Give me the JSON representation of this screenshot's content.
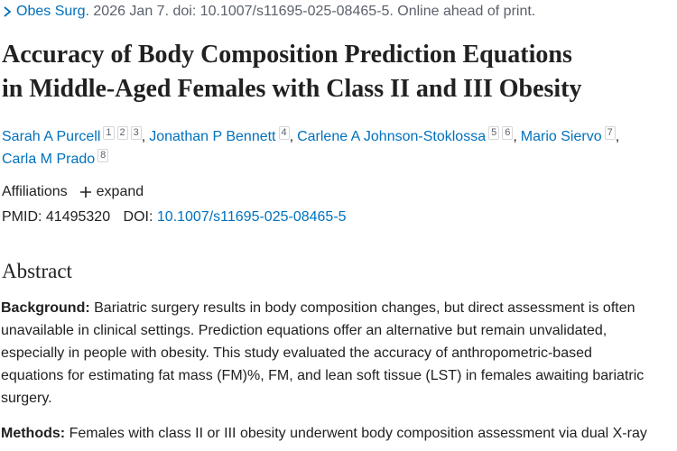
{
  "citation": {
    "journal": "Obes Surg.",
    "details": "2026 Jan 7. doi: 10.1007/s11695-025-08465-5. Online ahead of print."
  },
  "title_lines": [
    "Accuracy of Body Composition Prediction Equations",
    "in Middle-Aged Females with Class II and III Obesity"
  ],
  "author_separator": ",",
  "author_lines": [
    [
      {
        "name": "Sarah A Purcell",
        "affiliations": [
          "1",
          "2",
          "3"
        ]
      },
      {
        "name": "Jonathan P Bennett",
        "affiliations": [
          "4"
        ]
      },
      {
        "name": "Carlene A Johnson-Stoklossa",
        "affiliations": [
          "5",
          "6"
        ]
      },
      {
        "name": "Mario Siervo",
        "affiliations": [
          "7"
        ]
      }
    ],
    [
      {
        "name": "Carla M Prado",
        "affiliations": [
          "8"
        ]
      }
    ]
  ],
  "affiliations": {
    "label": "Affiliations",
    "toggle": "expand"
  },
  "identifiers": {
    "pmid_label": "PMID:",
    "pmid": "41495320",
    "doi_label": "DOI:",
    "doi": "10.1007/s11695-025-08465-5"
  },
  "abstract": {
    "heading": "Abstract",
    "sections": [
      {
        "label": "Background:",
        "lines": [
          "Bariatric surgery results in body composition changes, but direct assessment is often",
          "unavailable in clinical settings. Prediction equations offer an alternative but remain unvalidated,",
          "especially in people with obesity. This study evaluated the accuracy of anthropometric-based",
          "equations for estimating fat mass (FM)%, FM, and lean soft tissue (LST) in females awaiting bariatric",
          "surgery."
        ]
      },
      {
        "label": "Methods:",
        "lines": [
          "Females with class II or III obesity underwent body composition assessment via dual X-ray"
        ]
      }
    ]
  }
}
